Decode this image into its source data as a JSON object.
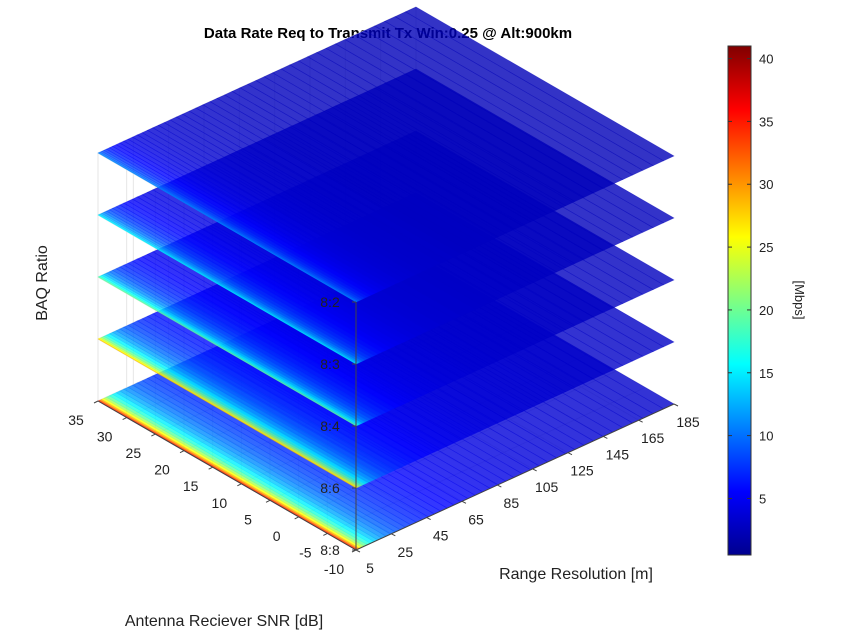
{
  "chart_data": {
    "type": "surface",
    "title": "Data Rate Req to Transmit Tx Win:0.25 @ Alt:900km",
    "xlabel": "Range Resolution [m]",
    "ylabel": "Antenna Reciever SNR [dB]",
    "zlabel": "BAQ Ratio",
    "x_ticks": [
      "5",
      "25",
      "45",
      "65",
      "85",
      "105",
      "125",
      "145",
      "165",
      "185"
    ],
    "x_range": [
      5,
      185
    ],
    "y_ticks": [
      "-10",
      "-5",
      "0",
      "5",
      "10",
      "15",
      "20",
      "25",
      "30",
      "35"
    ],
    "y_range": [
      -10,
      35
    ],
    "z_ticks": [
      "8:8",
      "8:6",
      "8:4",
      "8:3",
      "8:2"
    ],
    "colorbar": {
      "label": "[Mbps]",
      "ticks": [
        "5",
        "10",
        "15",
        "20",
        "25",
        "30",
        "35",
        "40"
      ],
      "tick_values": [
        5,
        10,
        15,
        20,
        25,
        30,
        35,
        40
      ],
      "range": [
        0.5,
        41
      ],
      "colormap": "jet"
    },
    "series": [
      {
        "name": "8:8",
        "max_value": 40
      },
      {
        "name": "8:6",
        "max_value": 30
      },
      {
        "name": "8:4",
        "max_value": 20
      },
      {
        "name": "8:3",
        "max_value": 15
      },
      {
        "name": "8:2",
        "max_value": 10
      }
    ],
    "face_alpha": 0.8,
    "grid": true
  }
}
